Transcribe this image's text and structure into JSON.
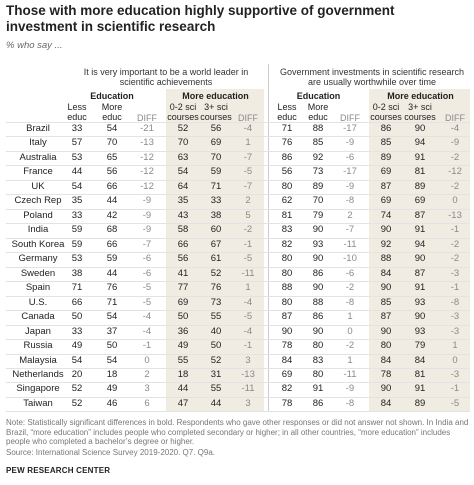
{
  "header": {
    "title": "Those with more education highly supportive of government investment in scientific research",
    "subtitle": "% who say ..."
  },
  "panels": [
    {
      "question": "It is very important to be a world leader in scientific achievements",
      "groups": [
        "Education",
        "More education"
      ],
      "columns": [
        "Less educ",
        "More educ",
        "DIFF",
        "0-2 sci courses",
        "3+ sci courses",
        "DIFF"
      ]
    },
    {
      "question": "Government investments in scientific research are usually worthwhile over time",
      "groups": [
        "Education",
        "More education"
      ],
      "columns": [
        "Less educ",
        "More educ",
        "DIFF",
        "0-2 sci courses",
        "3+ sci courses",
        "DIFF"
      ]
    }
  ],
  "table": {
    "rows": [
      {
        "country": "Brazil",
        "values": [
          33,
          54,
          -21,
          52,
          56,
          -4,
          71,
          88,
          -17,
          86,
          90,
          -4
        ]
      },
      {
        "country": "Italy",
        "values": [
          57,
          70,
          -13,
          70,
          69,
          1,
          76,
          85,
          -9,
          85,
          94,
          -9
        ]
      },
      {
        "country": "Australia",
        "values": [
          53,
          65,
          -12,
          63,
          70,
          -7,
          86,
          92,
          -6,
          89,
          91,
          -2
        ]
      },
      {
        "country": "France",
        "values": [
          44,
          56,
          -12,
          54,
          59,
          -5,
          56,
          73,
          -17,
          69,
          81,
          -12
        ]
      },
      {
        "country": "UK",
        "values": [
          54,
          66,
          -12,
          64,
          71,
          -7,
          80,
          89,
          -9,
          87,
          89,
          -2
        ]
      },
      {
        "country": "Czech Rep",
        "values": [
          35,
          44,
          -9,
          35,
          33,
          2,
          62,
          70,
          -8,
          69,
          69,
          0
        ]
      },
      {
        "country": "Poland",
        "values": [
          33,
          42,
          -9,
          43,
          38,
          5,
          81,
          79,
          2,
          74,
          87,
          -13
        ]
      },
      {
        "country": "India",
        "values": [
          59,
          68,
          -9,
          58,
          60,
          -2,
          83,
          90,
          -7,
          90,
          91,
          -1
        ]
      },
      {
        "country": "South Korea",
        "values": [
          59,
          66,
          -7,
          66,
          67,
          -1,
          82,
          93,
          -11,
          92,
          94,
          -2
        ]
      },
      {
        "country": "Germany",
        "values": [
          53,
          59,
          -6,
          56,
          61,
          -5,
          80,
          90,
          -10,
          88,
          90,
          -2
        ]
      },
      {
        "country": "Sweden",
        "values": [
          38,
          44,
          -6,
          41,
          52,
          -11,
          80,
          86,
          -6,
          84,
          87,
          -3
        ]
      },
      {
        "country": "Spain",
        "values": [
          71,
          76,
          -5,
          77,
          76,
          1,
          88,
          90,
          -2,
          90,
          91,
          -1
        ]
      },
      {
        "country": "U.S.",
        "values": [
          66,
          71,
          -5,
          69,
          73,
          -4,
          80,
          88,
          -8,
          85,
          93,
          -8
        ]
      },
      {
        "country": "Canada",
        "values": [
          50,
          54,
          -4,
          50,
          55,
          -5,
          87,
          86,
          1,
          87,
          90,
          -3
        ]
      },
      {
        "country": "Japan",
        "values": [
          33,
          37,
          -4,
          36,
          40,
          -4,
          90,
          90,
          0,
          90,
          93,
          -3
        ]
      },
      {
        "country": "Russia",
        "values": [
          49,
          50,
          -1,
          49,
          50,
          -1,
          78,
          80,
          -2,
          80,
          79,
          1
        ]
      },
      {
        "country": "Malaysia",
        "values": [
          54,
          54,
          0,
          55,
          52,
          3,
          84,
          83,
          1,
          84,
          84,
          0
        ]
      },
      {
        "country": "Netherlands",
        "values": [
          20,
          18,
          2,
          18,
          31,
          -13,
          69,
          80,
          -11,
          78,
          81,
          -3
        ]
      },
      {
        "country": "Singapore",
        "values": [
          52,
          49,
          3,
          44,
          55,
          -11,
          82,
          91,
          -9,
          90,
          91,
          -1
        ]
      },
      {
        "country": "Taiwan",
        "values": [
          52,
          46,
          6,
          47,
          44,
          3,
          78,
          86,
          -8,
          84,
          89,
          -5
        ]
      }
    ]
  },
  "footer": {
    "note": "Note: Statistically significant differences in bold. Respondents who gave other responses or did not answer not shown. In India and Brazil, “more education” includes people who completed secondary or higher; in all other countries, “more education” includes people who completed a bachelor’s degree or higher.",
    "source": "Source: International Science Survey 2019-2020. Q7. Q9a.",
    "org": "PEW RESEARCH CENTER"
  }
}
